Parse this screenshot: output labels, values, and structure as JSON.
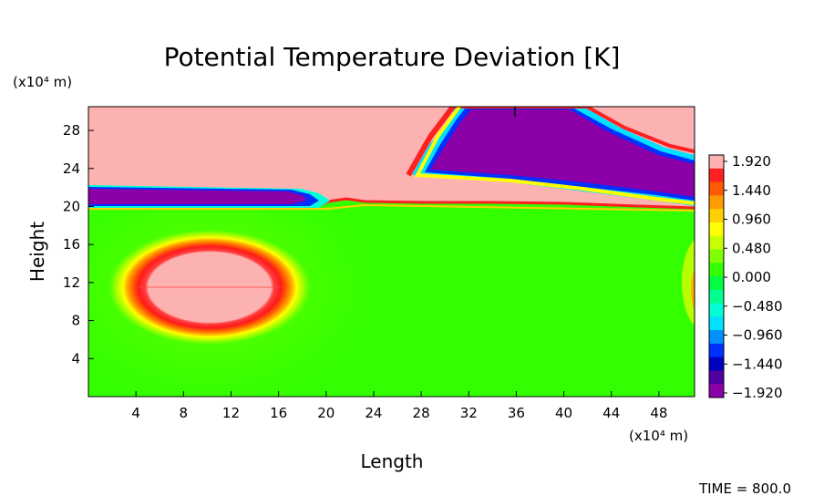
{
  "chart_data": {
    "type": "heatmap",
    "title": "Potential Temperature Deviation [K]",
    "xlabel": "Length",
    "ylabel": "Height",
    "x_unit": "(x10⁴ m)",
    "y_unit": "(x10⁴ m)",
    "xlim": [
      0,
      51
    ],
    "ylim": [
      0,
      30.5
    ],
    "x_ticks": [
      "4",
      "8",
      "12",
      "16",
      "20",
      "24",
      "28",
      "32",
      "36",
      "40",
      "44",
      "48"
    ],
    "y_ticks": [
      "4",
      "8",
      "12",
      "16",
      "20",
      "24",
      "28"
    ],
    "colorbar": {
      "labels": [
        "1.920",
        "1.440",
        "0.960",
        "0.480",
        "0.000",
        "−0.480",
        "−0.960",
        "−1.440",
        "−1.920"
      ],
      "min": -1.92,
      "max": 1.92,
      "colors_high_to_low": [
        "#fdb2b2",
        "#ff2020",
        "#ff5a00",
        "#ff9a00",
        "#ffd000",
        "#ffff00",
        "#c8ff00",
        "#80ff00",
        "#33ff00",
        "#00ff40",
        "#00ff90",
        "#00ffd8",
        "#00e0ff",
        "#0090ff",
        "#0030ff",
        "#0000c0",
        "#5000a0",
        "#8c00a8"
      ]
    },
    "features": [
      {
        "kind": "warm-anomaly",
        "x": 10.2,
        "y": 11.2,
        "peak": 1.92
      },
      {
        "kind": "warm-layer",
        "y_from": 19.5,
        "y_to": 30.5,
        "peak": 1.92
      },
      {
        "kind": "cold-anomaly",
        "x_from": 30,
        "x_to": 51,
        "y_from": 21,
        "y_to": 30.5,
        "min": -1.92
      },
      {
        "kind": "cold-strip",
        "x_from": 0,
        "x_to": 17,
        "y_from": 20,
        "y_to": 22,
        "min": -1.92
      }
    ]
  },
  "footer": {
    "time_label": "TIME = 800.0"
  }
}
